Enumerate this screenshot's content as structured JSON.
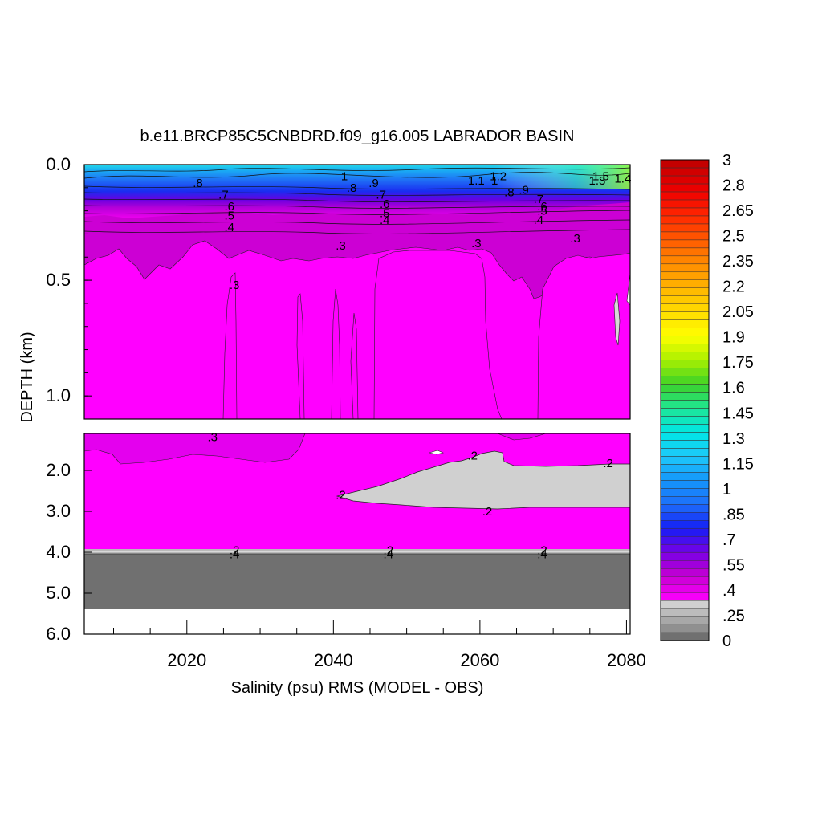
{
  "chart_data": {
    "type": "heatmap",
    "title": "b.e11.BRCP85C5CNBDRD.f09_g16.005 LABRADOR BASIN",
    "xlabel": "Salinity (psu) RMS (MODEL - OBS)",
    "ylabel": "DEPTH (km)",
    "xlim": [
      2006,
      2080.5
    ],
    "x_ticks": [
      "2020",
      "2040",
      "2060",
      "2080"
    ],
    "upper_panel": {
      "ylim": [
        0.0,
        1.1
      ],
      "y_ticks": [
        "0.0",
        "0.5",
        "1.0"
      ]
    },
    "lower_panel": {
      "ylim": [
        1.5,
        6.0
      ],
      "y_ticks": [
        "2.0",
        "3.0",
        "4.0",
        "5.0",
        "6.0"
      ]
    },
    "colorbar": {
      "range": [
        0,
        3
      ],
      "labels": [
        "3",
        "2.8",
        "2.65",
        "2.5",
        "2.35",
        "2.2",
        "2.05",
        "1.9",
        "1.75",
        "1.6",
        "1.45",
        "1.3",
        "1.15",
        "1",
        ".85",
        ".7",
        ".55",
        ".4",
        ".25",
        "0"
      ]
    },
    "contour_labels": [
      {
        "text": ".8",
        "x": 2021.5,
        "depth": 0.08
      },
      {
        "text": ".7",
        "x": 2025.0,
        "depth": 0.13
      },
      {
        "text": ".6",
        "x": 2025.8,
        "depth": 0.18
      },
      {
        "text": ".5",
        "x": 2025.8,
        "depth": 0.22
      },
      {
        "text": ".4",
        "x": 2025.8,
        "depth": 0.27
      },
      {
        "text": "1",
        "x": 2041.5,
        "depth": 0.05
      },
      {
        "text": ".8",
        "x": 2042.5,
        "depth": 0.1
      },
      {
        "text": ".9",
        "x": 2045.5,
        "depth": 0.08
      },
      {
        "text": ".7",
        "x": 2046.5,
        "depth": 0.13
      },
      {
        "text": ".6",
        "x": 2047.0,
        "depth": 0.17
      },
      {
        "text": ".5",
        "x": 2047.0,
        "depth": 0.21
      },
      {
        "text": ".4",
        "x": 2047.0,
        "depth": 0.24
      },
      {
        "text": ".3",
        "x": 2041.0,
        "depth": 0.35
      },
      {
        "text": "1.1",
        "x": 2059.5,
        "depth": 0.07
      },
      {
        "text": "1",
        "x": 2062.0,
        "depth": 0.07
      },
      {
        "text": "1.2",
        "x": 2062.5,
        "depth": 0.05
      },
      {
        "text": ".8",
        "x": 2064.0,
        "depth": 0.12
      },
      {
        "text": ".9",
        "x": 2066.0,
        "depth": 0.11
      },
      {
        "text": ".7",
        "x": 2068.0,
        "depth": 0.15
      },
      {
        "text": ".6",
        "x": 2068.5,
        "depth": 0.18
      },
      {
        "text": ".5",
        "x": 2068.5,
        "depth": 0.2
      },
      {
        "text": ".4",
        "x": 2068.0,
        "depth": 0.24
      },
      {
        "text": ".3",
        "x": 2059.5,
        "depth": 0.34
      },
      {
        "text": ".3",
        "x": 2073.0,
        "depth": 0.32
      },
      {
        "text": "1.5",
        "x": 2076.5,
        "depth": 0.05
      },
      {
        "text": "1.3",
        "x": 2076.0,
        "depth": 0.07
      },
      {
        "text": "1.4",
        "x": 2079.5,
        "depth": 0.06
      },
      {
        "text": ".3",
        "x": 2026.5,
        "depth": 0.52
      },
      {
        "text": ".3",
        "x": 2023.5,
        "depth": 1.55
      },
      {
        "text": ".2",
        "x": 2059.0,
        "depth": 1.8
      },
      {
        "text": ".2",
        "x": 2077.5,
        "depth": 1.9
      },
      {
        "text": ".2",
        "x": 2041.0,
        "depth": 2.6
      },
      {
        "text": ".2",
        "x": 2061.0,
        "depth": 3.0
      },
      {
        "text": ".2",
        "x": 2026.5,
        "depth": 3.95
      },
      {
        "text": ".4",
        "x": 2026.5,
        "depth": 4.05
      },
      {
        "text": ".2",
        "x": 2047.5,
        "depth": 3.95
      },
      {
        "text": ".4",
        "x": 2047.5,
        "depth": 4.05
      },
      {
        "text": ".2",
        "x": 2068.5,
        "depth": 3.95
      },
      {
        "text": ".4",
        "x": 2068.5,
        "depth": 4.05
      }
    ]
  }
}
